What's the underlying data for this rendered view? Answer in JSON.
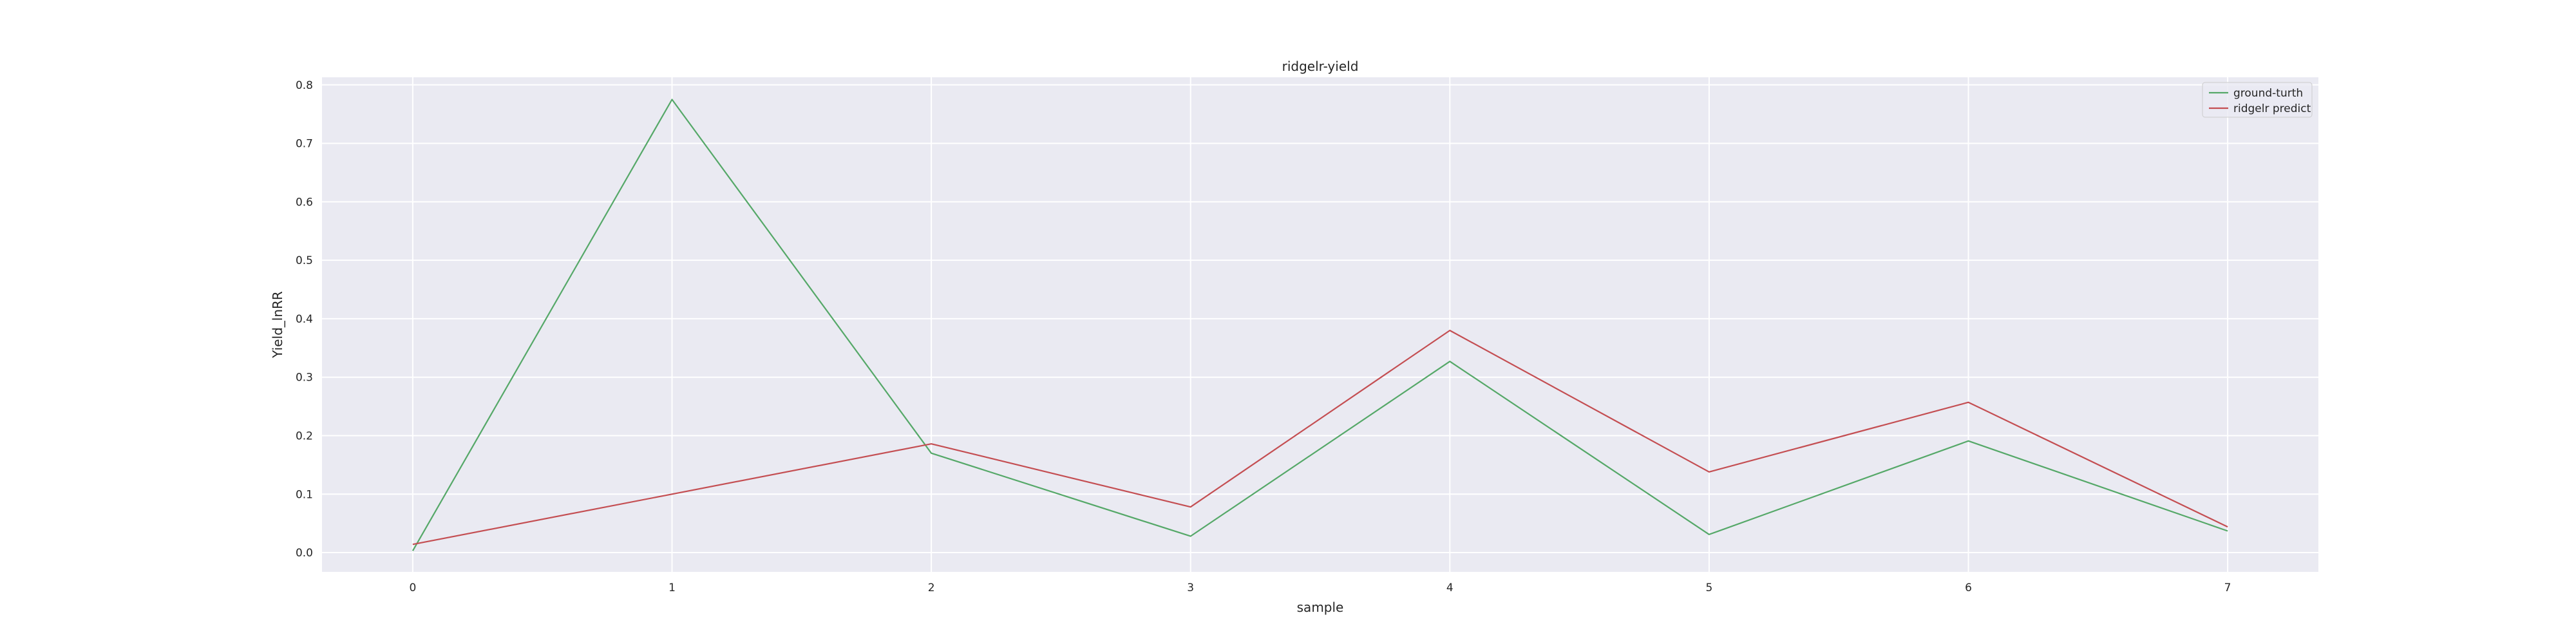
{
  "chart_data": {
    "type": "line",
    "title": "ridgelr-yield",
    "xlabel": "sample",
    "ylabel": "Yield_lnRR",
    "x": [
      0,
      1,
      2,
      3,
      4,
      5,
      6,
      7
    ],
    "xlim": [
      -0.35,
      7.35
    ],
    "ylim": [
      -0.033,
      0.813
    ],
    "xticks": [
      0,
      1,
      2,
      3,
      4,
      5,
      6,
      7
    ],
    "yticks": [
      0.0,
      0.1,
      0.2,
      0.3,
      0.4,
      0.5,
      0.6,
      0.7,
      0.8
    ],
    "ytick_labels": [
      "0.0",
      "0.1",
      "0.2",
      "0.3",
      "0.4",
      "0.5",
      "0.6",
      "0.7",
      "0.8"
    ],
    "grid": true,
    "legend_position": "top-right",
    "series": [
      {
        "name": "ground-turth",
        "color": "#55a868",
        "values": [
          0.003,
          0.775,
          0.17,
          0.028,
          0.327,
          0.031,
          0.191,
          0.037
        ]
      },
      {
        "name": "ridgelr predict",
        "color": "#c44e52",
        "values": [
          0.014,
          0.1,
          0.186,
          0.078,
          0.38,
          0.138,
          0.257,
          0.044
        ]
      }
    ],
    "colors": {
      "plot_background": "#eaeaf2",
      "grid": "#ffffff",
      "text": "#262626"
    }
  }
}
